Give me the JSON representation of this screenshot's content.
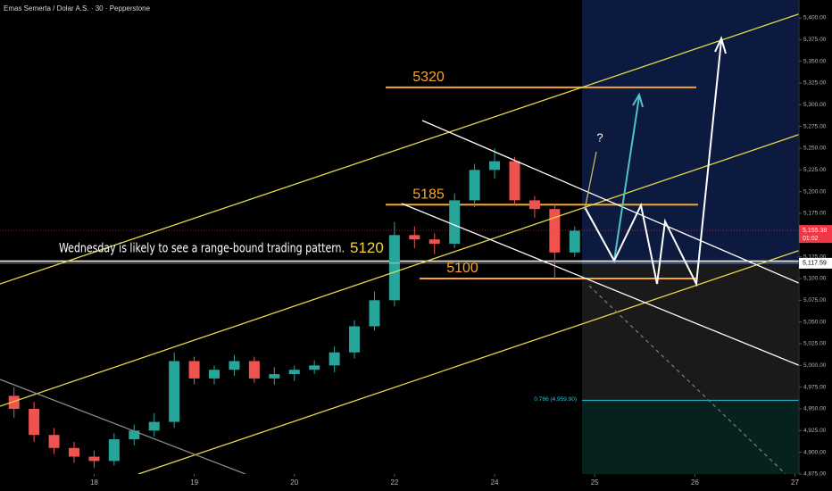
{
  "header": {
    "title": "Emas Semerta / Dolar A.S. · 30 · Pepperstone"
  },
  "chart_data": {
    "type": "candlestick",
    "x": [
      -0.8,
      -0.6,
      -0.4,
      -0.2,
      0,
      0.2,
      0.4,
      0.6,
      0.8,
      1,
      1.2,
      1.4,
      1.6,
      1.8,
      2,
      2.2,
      2.4,
      2.6,
      2.8,
      3,
      3.2,
      3.4,
      3.6,
      3.8,
      4,
      4.2,
      4.4,
      4.6,
      4.8
    ],
    "open": [
      4965,
      4950,
      4920,
      4905,
      4895,
      4890,
      4915,
      4925,
      4935,
      5005,
      4985,
      4995,
      5005,
      4985,
      4990,
      4995,
      5000,
      5015,
      5045,
      5075,
      5150,
      5145,
      5140,
      5190,
      5225,
      5235,
      5190,
      5180,
      5130
    ],
    "high": [
      4975,
      4958,
      4928,
      4912,
      4902,
      4922,
      4932,
      4945,
      5015,
      5010,
      5000,
      5012,
      5010,
      4998,
      5000,
      5006,
      5022,
      5052,
      5085,
      5165,
      5160,
      5152,
      5198,
      5232,
      5250,
      5240,
      5195,
      5185,
      5160
    ],
    "low": [
      4940,
      4912,
      4898,
      4888,
      4882,
      4885,
      4908,
      4918,
      4928,
      4978,
      4978,
      4988,
      4980,
      4978,
      4982,
      4990,
      4992,
      5008,
      5040,
      5068,
      5135,
      5128,
      5135,
      5182,
      5215,
      5185,
      5170,
      5100,
      5125
    ],
    "close": [
      4950,
      4920,
      4905,
      4895,
      4890,
      4915,
      4925,
      4935,
      5005,
      4985,
      4995,
      5005,
      4985,
      4990,
      4995,
      5000,
      5015,
      5045,
      5075,
      5150,
      5145,
      5140,
      5190,
      5225,
      5235,
      5190,
      5180,
      5130,
      5155
    ],
    "up_color": "#26a69a",
    "down_color": "#ef5350",
    "xlim": [
      -0.94,
      7.04
    ],
    "xticks": [
      {
        "value": 0,
        "label": "18"
      },
      {
        "value": 1,
        "label": "19"
      },
      {
        "value": 2,
        "label": "20"
      },
      {
        "value": 3,
        "label": "22"
      },
      {
        "value": 4,
        "label": "24"
      },
      {
        "value": 5,
        "label": "25"
      },
      {
        "value": 6,
        "label": "26"
      },
      {
        "value": 7,
        "label": "27"
      }
    ],
    "ylim": [
      4875,
      5400
    ],
    "yticks": [
      {
        "value": 4875,
        "label": "4,875.00"
      },
      {
        "value": 4900,
        "label": "4,900.00"
      },
      {
        "value": 4925,
        "label": "4,925.00"
      },
      {
        "value": 4950,
        "label": "4,950.00"
      },
      {
        "value": 4975,
        "label": "4,975.00"
      },
      {
        "value": 5000,
        "label": "5,000.00"
      },
      {
        "value": 5025,
        "label": "5,025.00"
      },
      {
        "value": 5050,
        "label": "5,050.00"
      },
      {
        "value": 5075,
        "label": "5,075.00"
      },
      {
        "value": 5100,
        "label": "5,100.00"
      },
      {
        "value": 5125,
        "label": "5,125.00"
      },
      {
        "value": 5150,
        "label": "5,150.00"
      },
      {
        "value": 5175,
        "label": "5,175.00"
      },
      {
        "value": 5200,
        "label": "5,200.00"
      },
      {
        "value": 5225,
        "label": "5,225.00"
      },
      {
        "value": 5250,
        "label": "5,250.00"
      },
      {
        "value": 5275,
        "label": "5,275.00"
      },
      {
        "value": 5300,
        "label": "5,300.00"
      },
      {
        "value": 5325,
        "label": "5,325.00"
      },
      {
        "value": 5350,
        "label": "5,350.00"
      },
      {
        "value": 5375,
        "label": "5,375.00"
      },
      {
        "value": 5400,
        "label": "5,400.00"
      }
    ],
    "levels": [
      5320,
      5185,
      5100
    ],
    "level_color": "#f7a531",
    "range_level": 5120,
    "note": "Wednesday is likely to see a range-bound trading pattern.",
    "price_tags": [
      {
        "value": 5155.38,
        "label": "5,155.38",
        "color": "#f23645"
      },
      {
        "value": 5117.59,
        "label": "5,117.59",
        "color": "#ffffff"
      }
    ],
    "countdown": "01:02",
    "fib": {
      "value": 4959.9,
      "label": "0.786 (4,959.90)",
      "color": "#26c6da"
    },
    "question": "?"
  }
}
